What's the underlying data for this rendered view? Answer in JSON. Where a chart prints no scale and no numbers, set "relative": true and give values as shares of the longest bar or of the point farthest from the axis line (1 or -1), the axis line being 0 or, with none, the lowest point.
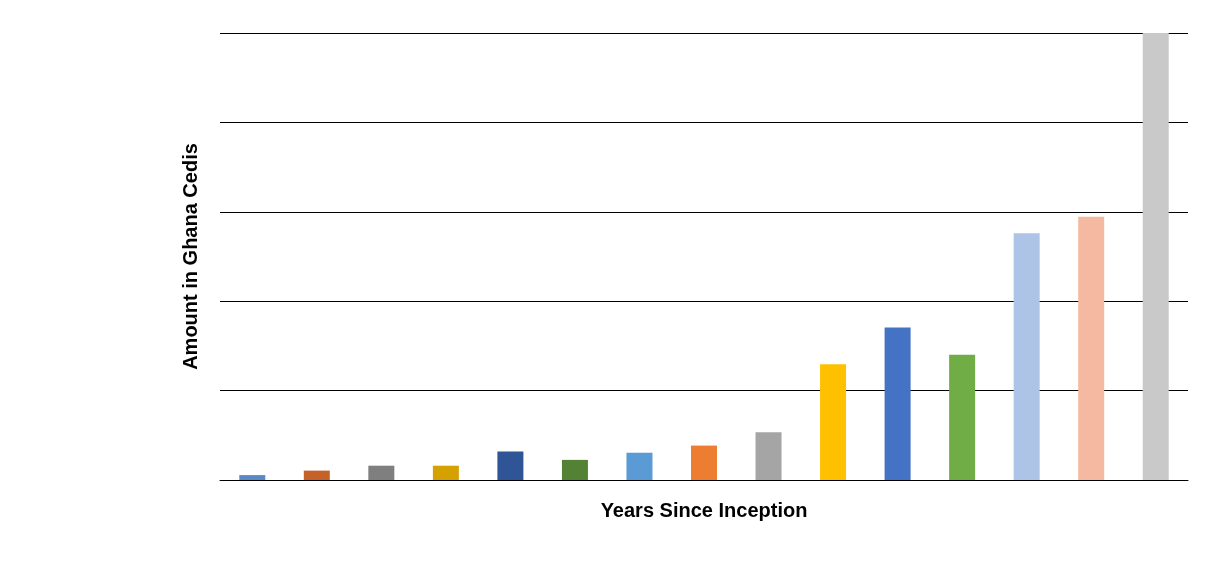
{
  "chart_data": {
    "type": "bar",
    "xlabel": "Years Since Inception",
    "ylabel": "Amount in Ghana Cedis",
    "relative": true,
    "grid": "y",
    "categories": [
      null,
      null,
      null,
      null,
      null,
      null,
      null,
      null,
      null,
      null,
      null,
      null,
      null,
      null,
      null
    ],
    "values": [
      0.011,
      0.021,
      0.032,
      0.032,
      0.064,
      0.045,
      0.061,
      0.077,
      0.107,
      0.259,
      0.341,
      0.28,
      0.552,
      0.589,
      1
    ],
    "colors": [
      "#5a8ac6",
      "#c5622a",
      "#7f7f7f",
      "#d4a100",
      "#2f5597",
      "#548235",
      "#5b9bd5",
      "#ed7d31",
      "#a5a5a5",
      "#ffc000",
      "#4472c4",
      "#70ad47",
      "#adc4e6",
      "#f4b9a0",
      "#c9c9c9"
    ]
  }
}
